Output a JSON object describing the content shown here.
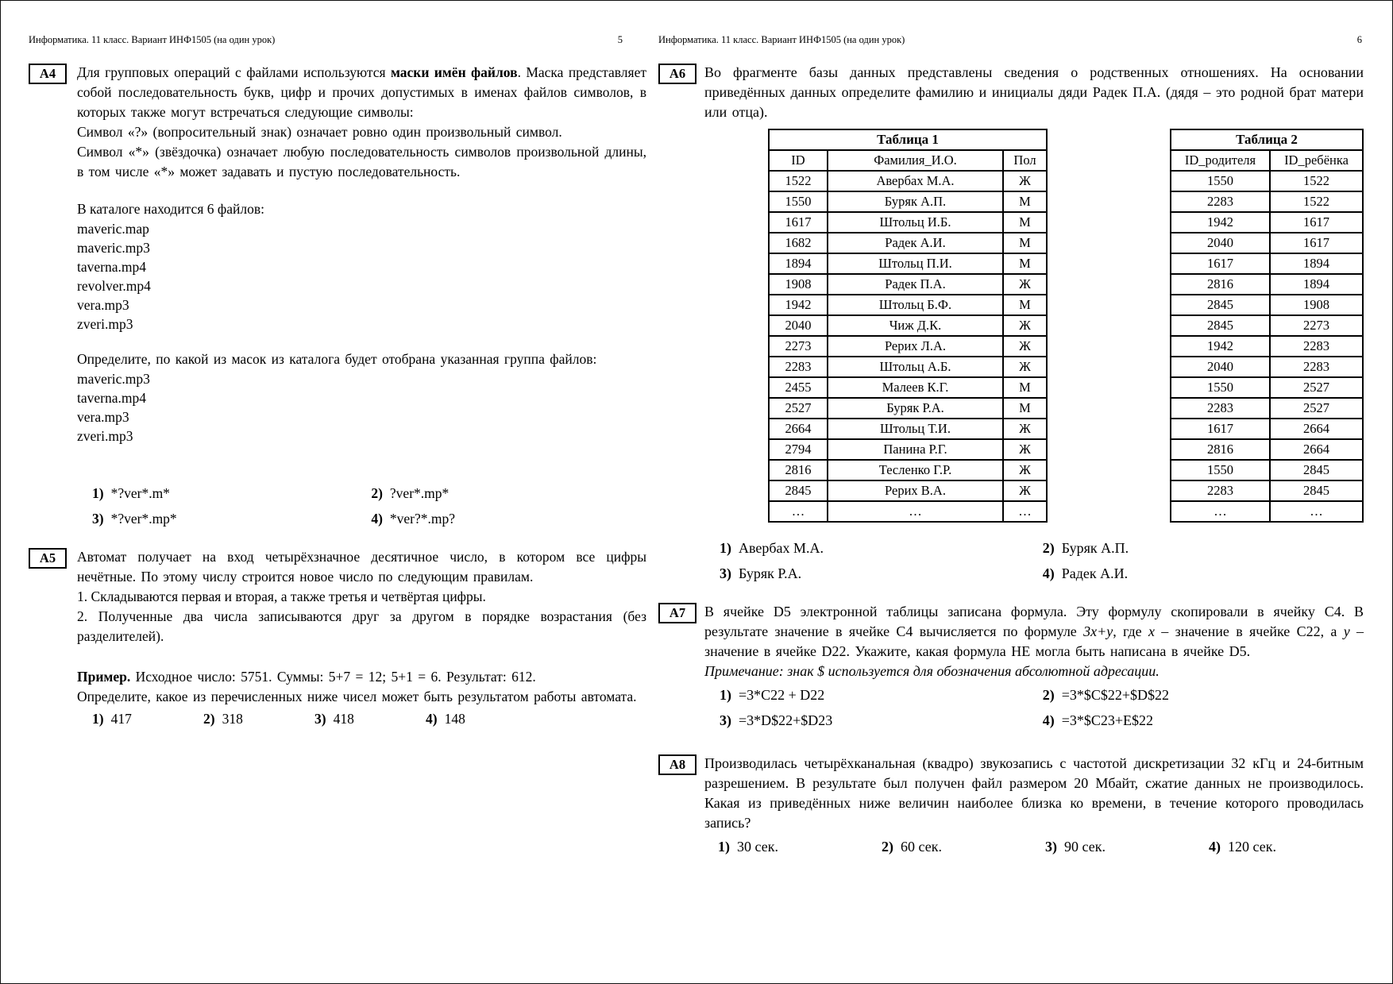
{
  "left_page": {
    "header": {
      "title": "Информатика. 11 класс. Вариант ИНФ1505 (на один урок)",
      "page_number": "5"
    },
    "a4": {
      "label": "А4",
      "intro_pre": "Для групповых операций с файлами используются ",
      "intro_bold": "маски имён файлов",
      "intro_post": ". Маска представляет собой последовательность букв, цифр и прочих допустимых в именах файлов символов, в которых также могут встречаться следующие символы:",
      "rule_question_mark": "Символ «?» (вопросительный знак) означает ровно один произвольный символ.",
      "rule_asterisk": "Символ «*» (звёздочка) означает любую последовательность символов произвольной длины, в том числе «*» может задавать и пустую последовательность.",
      "catalog_intro": "В каталоге находится 6 файлов:",
      "catalog_files": [
        "maveric.map",
        "maveric.mp3",
        "taverna.mp4",
        "revolver.mp4",
        "vera.mp3",
        "zveri.mp3"
      ],
      "task_intro": "Определите, по какой из масок из каталога будет отобрана указанная группа файлов:",
      "selected_files": [
        "maveric.mp3",
        "taverna.mp4",
        "vera.mp3",
        "zveri.mp3"
      ],
      "options": [
        {
          "num": "1)",
          "text": "*?ver*.m*"
        },
        {
          "num": "2)",
          "text": "?ver*.mp*"
        },
        {
          "num": "3)",
          "text": "*?ver*.mp*"
        },
        {
          "num": "4)",
          "text": "*ver?*.mp?"
        }
      ]
    },
    "a5": {
      "label": "А5",
      "intro": "Автомат получает на вход четырёхзначное десятичное число, в котором все цифры нечётные. По этому числу строится новое число по следующим правилам.",
      "rule1": "1. Складываются первая и вторая, а также третья и четвёртая цифры.",
      "rule2": "2. Полученные два числа записываются друг за другом в порядке возрастания (без разделителей).",
      "example_label": "Пример.",
      "example_text": " Исходное число: 5751. Суммы: 5+7 = 12; 5+1 = 6. Результат: 612.",
      "task": "Определите, какое из перечисленных ниже чисел может быть результатом работы автомата.",
      "options": [
        {
          "num": "1)",
          "text": "417"
        },
        {
          "num": "2)",
          "text": "318"
        },
        {
          "num": "3)",
          "text": "418"
        },
        {
          "num": "4)",
          "text": "148"
        }
      ]
    }
  },
  "right_page": {
    "header": {
      "title": "Информатика. 11 класс. Вариант ИНФ1505 (на один урок)",
      "page_number": "6"
    },
    "a6": {
      "label": "А6",
      "intro": "Во фрагменте базы данных представлены сведения о родственных отношениях. На основании приведённых данных определите фамилию и инициалы дяди Радек П.А. (дядя – это родной брат матери или отца).",
      "table1": {
        "title": "Таблица 1",
        "headers": [
          "ID",
          "Фамилия_И.О.",
          "Пол"
        ],
        "rows": [
          [
            "1522",
            "Авербах М.А.",
            "Ж"
          ],
          [
            "1550",
            "Буряк А.П.",
            "М"
          ],
          [
            "1617",
            "Штольц И.Б.",
            "М"
          ],
          [
            "1682",
            "Радек А.И.",
            "М"
          ],
          [
            "1894",
            "Штольц П.И.",
            "М"
          ],
          [
            "1908",
            "Радек П.А.",
            "Ж"
          ],
          [
            "1942",
            "Штольц Б.Ф.",
            "М"
          ],
          [
            "2040",
            "Чиж Д.К.",
            "Ж"
          ],
          [
            "2273",
            "Рерих Л.А.",
            "Ж"
          ],
          [
            "2283",
            "Штольц А.Б.",
            "Ж"
          ],
          [
            "2455",
            "Малеев К.Г.",
            "М"
          ],
          [
            "2527",
            "Буряк Р.А.",
            "М"
          ],
          [
            "2664",
            "Штольц Т.И.",
            "Ж"
          ],
          [
            "2794",
            "Панина Р.Г.",
            "Ж"
          ],
          [
            "2816",
            "Тесленко Г.Р.",
            "Ж"
          ],
          [
            "2845",
            "Рерих В.А.",
            "Ж"
          ],
          [
            "…",
            "…",
            "…"
          ]
        ]
      },
      "table2": {
        "title": "Таблица 2",
        "headers": [
          "ID_родителя",
          "ID_ребёнка"
        ],
        "rows": [
          [
            "1550",
            "1522"
          ],
          [
            "2283",
            "1522"
          ],
          [
            "1942",
            "1617"
          ],
          [
            "2040",
            "1617"
          ],
          [
            "1617",
            "1894"
          ],
          [
            "2816",
            "1894"
          ],
          [
            "2845",
            "1908"
          ],
          [
            "2845",
            "2273"
          ],
          [
            "1942",
            "2283"
          ],
          [
            "2040",
            "2283"
          ],
          [
            "1550",
            "2527"
          ],
          [
            "2283",
            "2527"
          ],
          [
            "1617",
            "2664"
          ],
          [
            "2816",
            "2664"
          ],
          [
            "1550",
            "2845"
          ],
          [
            "2283",
            "2845"
          ],
          [
            "…",
            "…"
          ]
        ]
      },
      "options": [
        {
          "num": "1)",
          "text": "Авербах М.А."
        },
        {
          "num": "2)",
          "text": "Буряк А.П."
        },
        {
          "num": "3)",
          "text": "Буряк Р.А."
        },
        {
          "num": "4)",
          "text": "Радек А.И."
        }
      ]
    },
    "a7": {
      "label": "А7",
      "p_part1": "В ячейке D5 электронной таблицы записана формула. Эту формулу скопировали в ячейку С4. В результате значение в ячейке С4 вычисляется по формуле ",
      "formula": "3x+y",
      "p_part2": ", где ",
      "var_x": "x",
      "p_part3": " – значение в ячейке С22, а ",
      "var_y": "y",
      "p_part4": " – значение в ячейке D22. Укажите, какая формула НЕ могла быть написана в ячейке D5.",
      "note": "Примечание: знак $ используется для обозначения абсолютной адресации.",
      "options": [
        {
          "num": "1)",
          "text": "=3*C22 + D22"
        },
        {
          "num": "2)",
          "text": "=3*$C$22+$D$22"
        },
        {
          "num": "3)",
          "text": "=3*D$22+$D23"
        },
        {
          "num": "4)",
          "text": "=3*$C23+E$22"
        }
      ]
    },
    "a8": {
      "label": "А8",
      "intro": "Производилась четырёхканальная (квадро) звукозапись с частотой дискретизации 32 кГц и 24-битным разрешением. В результате был получен файл размером 20 Мбайт, сжатие данных не производилось. Какая из приведённых ниже величин наиболее близка ко времени, в течение которого проводилась запись?",
      "options": [
        {
          "num": "1)",
          "text": "30 сек."
        },
        {
          "num": "2)",
          "text": "60 сек."
        },
        {
          "num": "3)",
          "text": "90 сек."
        },
        {
          "num": "4)",
          "text": "120 сек."
        }
      ]
    }
  }
}
